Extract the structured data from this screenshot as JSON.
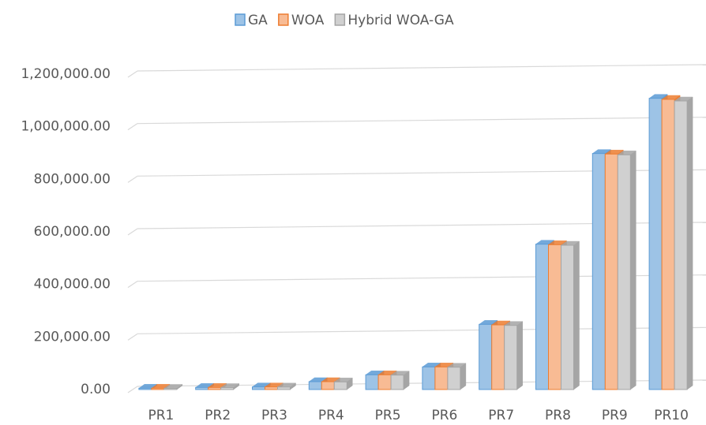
{
  "chart_data": {
    "type": "bar3d",
    "categories": [
      "PR1",
      "PR2",
      "PR3",
      "PR4",
      "PR5",
      "PR6",
      "PR7",
      "PR8",
      "PR9",
      "PR10"
    ],
    "series": [
      {
        "name": "GA",
        "color": "#9dc3e6",
        "edge": "#5b9bd5",
        "values": [
          5000,
          8000,
          10000,
          30000,
          56000,
          86000,
          248000,
          553000,
          898000,
          1108000
        ]
      },
      {
        "name": "WOA",
        "color": "#f8bb94",
        "edge": "#ed7d31",
        "values": [
          5000,
          8000,
          10000,
          30000,
          56000,
          86000,
          246000,
          551000,
          896000,
          1104000
        ]
      },
      {
        "name": "Hybrid WOA-GA",
        "color": "#d0d0d0",
        "edge": "#a5a5a5",
        "values": [
          4500,
          7500,
          9500,
          29000,
          55000,
          85000,
          244000,
          549000,
          893000,
          1098000
        ]
      }
    ],
    "ylim": [
      0,
      1200000
    ],
    "yticks": [
      {
        "value": 0,
        "label": "0.00"
      },
      {
        "value": 200000,
        "label": "200,000.00"
      },
      {
        "value": 400000,
        "label": "400,000.00"
      },
      {
        "value": 600000,
        "label": "600,000.00"
      },
      {
        "value": 800000,
        "label": "800,000.00"
      },
      {
        "value": 1000000,
        "label": "1,000,000.00"
      },
      {
        "value": 1200000,
        "label": "1,200,000.00"
      }
    ],
    "grid": true,
    "legend": "top"
  }
}
